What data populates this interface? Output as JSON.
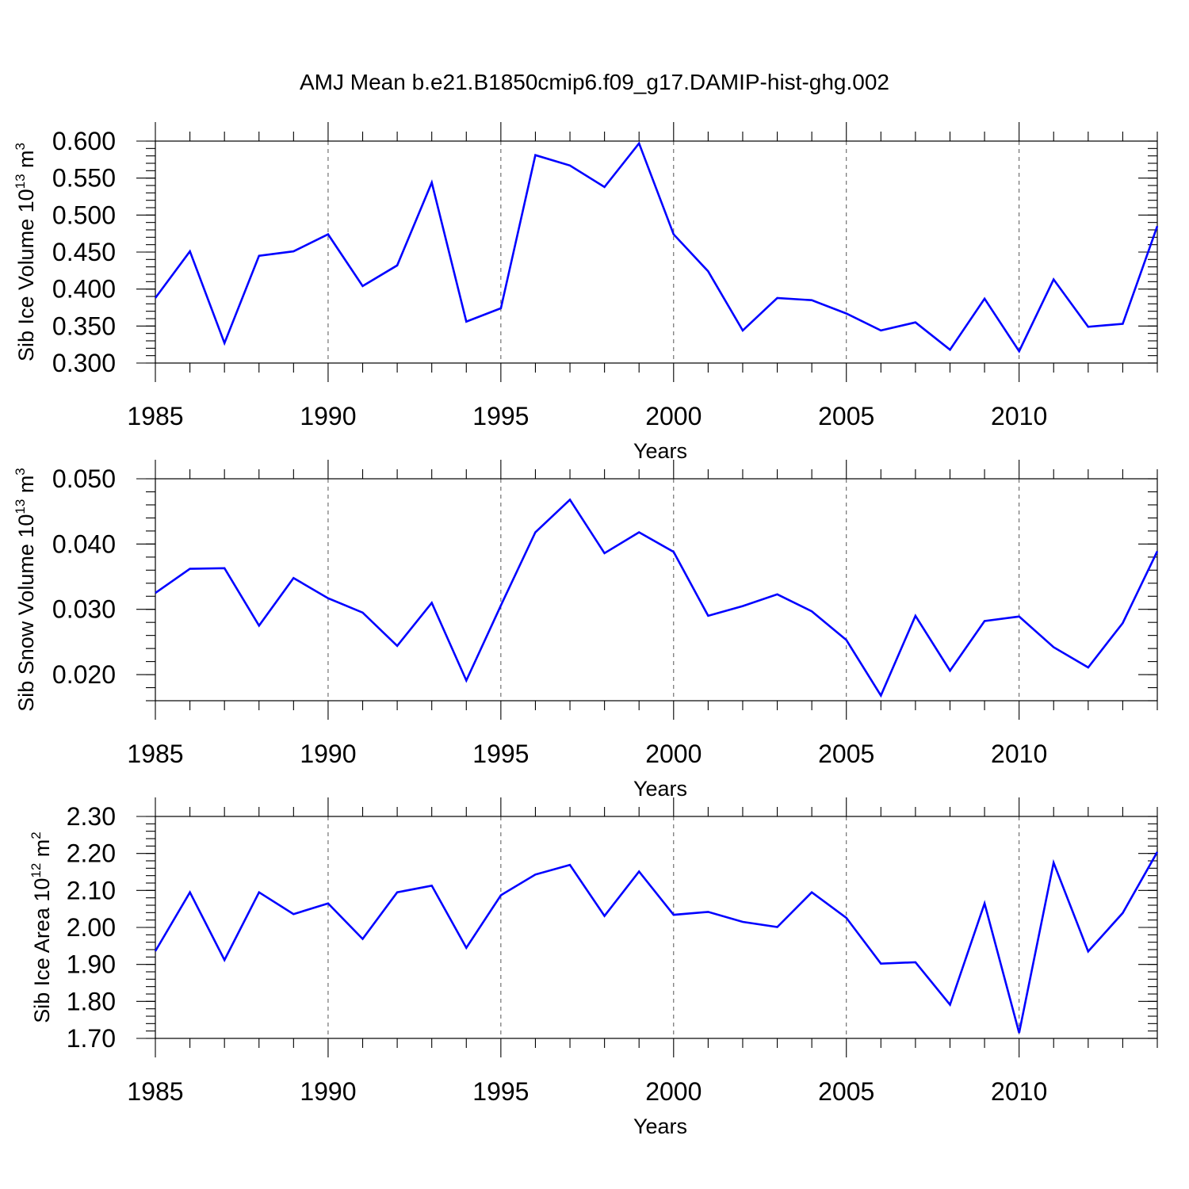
{
  "chart_data": [
    {
      "type": "line",
      "title": "AMJ Mean b.e21.B1850cmip6.f09_g17.DAMIP-hist-ghg.002",
      "ylabel": "Sib Ice Volume 10",
      "ylabel_sup": "13",
      "ylabel_unit": " m",
      "ylabel_unit_sup": "3",
      "xlabel": "Years",
      "xlim": [
        1985,
        2014
      ],
      "ylim": [
        0.3,
        0.6
      ],
      "xticks": [
        1985,
        1990,
        1995,
        2000,
        2005,
        2010
      ],
      "xtick_labels": [
        "1985",
        "1990",
        "1995",
        "2000",
        "2005",
        "2010"
      ],
      "yticks": [
        0.3,
        0.35,
        0.4,
        0.45,
        0.5,
        0.55,
        0.6
      ],
      "ytick_labels": [
        "0.300",
        "0.350",
        "0.400",
        "0.450",
        "0.500",
        "0.550",
        "0.600"
      ],
      "yminor_step": 0.01,
      "ydata_min": 0.3,
      "ydata_max": 0.6,
      "grid_x": true,
      "series": [
        {
          "name": "Sib Ice Volume",
          "color": "#0000ff",
          "x": [
            1985,
            1986,
            1987,
            1988,
            1989,
            1990,
            1991,
            1992,
            1993,
            1994,
            1995,
            1996,
            1997,
            1998,
            1999,
            2000,
            2001,
            2002,
            2003,
            2004,
            2005,
            2006,
            2007,
            2008,
            2009,
            2010,
            2011,
            2012,
            2013,
            2014
          ],
          "values": [
            0.388,
            0.451,
            0.327,
            0.445,
            0.451,
            0.474,
            0.404,
            0.432,
            0.544,
            0.356,
            0.374,
            0.581,
            0.567,
            0.538,
            0.597,
            0.474,
            0.424,
            0.344,
            0.388,
            0.385,
            0.367,
            0.344,
            0.355,
            0.318,
            0.387,
            0.316,
            0.413,
            0.349,
            0.353,
            0.485
          ]
        }
      ]
    },
    {
      "type": "line",
      "ylabel": "Sib Snow Volume 10",
      "ylabel_sup": "13",
      "ylabel_unit": " m",
      "ylabel_unit_sup": "3",
      "xlabel": "Years",
      "xlim": [
        1985,
        2014
      ],
      "ylim": [
        0.015,
        0.05
      ],
      "xticks": [
        1985,
        1990,
        1995,
        2000,
        2005,
        2010
      ],
      "xtick_labels": [
        "1985",
        "1990",
        "1995",
        "2000",
        "2005",
        "2010"
      ],
      "yticks": [
        0.02,
        0.03,
        0.04,
        0.05
      ],
      "ytick_labels": [
        "0.020",
        "0.030",
        "0.040",
        "0.050"
      ],
      "yminor_step": 0.002,
      "ydata_min": 0.016,
      "ydata_max": 0.05,
      "grid_x": true,
      "series": [
        {
          "name": "Sib Snow Volume",
          "color": "#0000ff",
          "x": [
            1985,
            1986,
            1987,
            1988,
            1989,
            1990,
            1991,
            1992,
            1993,
            1994,
            1995,
            1996,
            1997,
            1998,
            1999,
            2000,
            2001,
            2002,
            2003,
            2004,
            2005,
            2006,
            2007,
            2008,
            2009,
            2010,
            2011,
            2012,
            2013,
            2014
          ],
          "values": [
            0.0325,
            0.0362,
            0.0363,
            0.0275,
            0.0348,
            0.0317,
            0.0295,
            0.0244,
            0.031,
            0.0191,
            0.0306,
            0.0418,
            0.0468,
            0.0386,
            0.0418,
            0.0388,
            0.029,
            0.0305,
            0.0323,
            0.0297,
            0.0253,
            0.0168,
            0.029,
            0.0206,
            0.0282,
            0.0289,
            0.0242,
            0.0211,
            0.0279,
            0.0389
          ]
        }
      ]
    },
    {
      "type": "line",
      "ylabel": "Sib Ice Area 10",
      "ylabel_sup": "12",
      "ylabel_unit": " m",
      "ylabel_unit_sup": "2",
      "xlabel": "Years",
      "xlim": [
        1985,
        2014
      ],
      "ylim": [
        1.7,
        2.3
      ],
      "xticks": [
        1985,
        1990,
        1995,
        2000,
        2005,
        2010
      ],
      "xtick_labels": [
        "1985",
        "1990",
        "1995",
        "2000",
        "2005",
        "2010"
      ],
      "yticks": [
        1.7,
        1.8,
        1.9,
        2.0,
        2.1,
        2.2,
        2.3
      ],
      "ytick_labels": [
        "1.70",
        "1.80",
        "1.90",
        "2.00",
        "2.10",
        "2.20",
        "2.30"
      ],
      "yminor_step": 0.02,
      "ydata_min": 1.7,
      "ydata_max": 2.3,
      "grid_x": true,
      "series": [
        {
          "name": "Sib Ice Area",
          "color": "#0000ff",
          "x": [
            1985,
            1986,
            1987,
            1988,
            1989,
            1990,
            1991,
            1992,
            1993,
            1994,
            1995,
            1996,
            1997,
            1998,
            1999,
            2000,
            2001,
            2002,
            2003,
            2004,
            2005,
            2006,
            2007,
            2008,
            2009,
            2010,
            2011,
            2012,
            2013,
            2014
          ],
          "values": [
            1.936,
            2.095,
            1.912,
            2.095,
            2.036,
            2.065,
            1.969,
            2.095,
            2.113,
            1.945,
            2.087,
            2.143,
            2.169,
            2.031,
            2.151,
            2.034,
            2.042,
            2.015,
            2.001,
            2.095,
            2.026,
            1.902,
            1.906,
            1.791,
            2.065,
            1.715,
            2.175,
            1.935,
            2.039,
            2.204
          ]
        }
      ]
    }
  ]
}
